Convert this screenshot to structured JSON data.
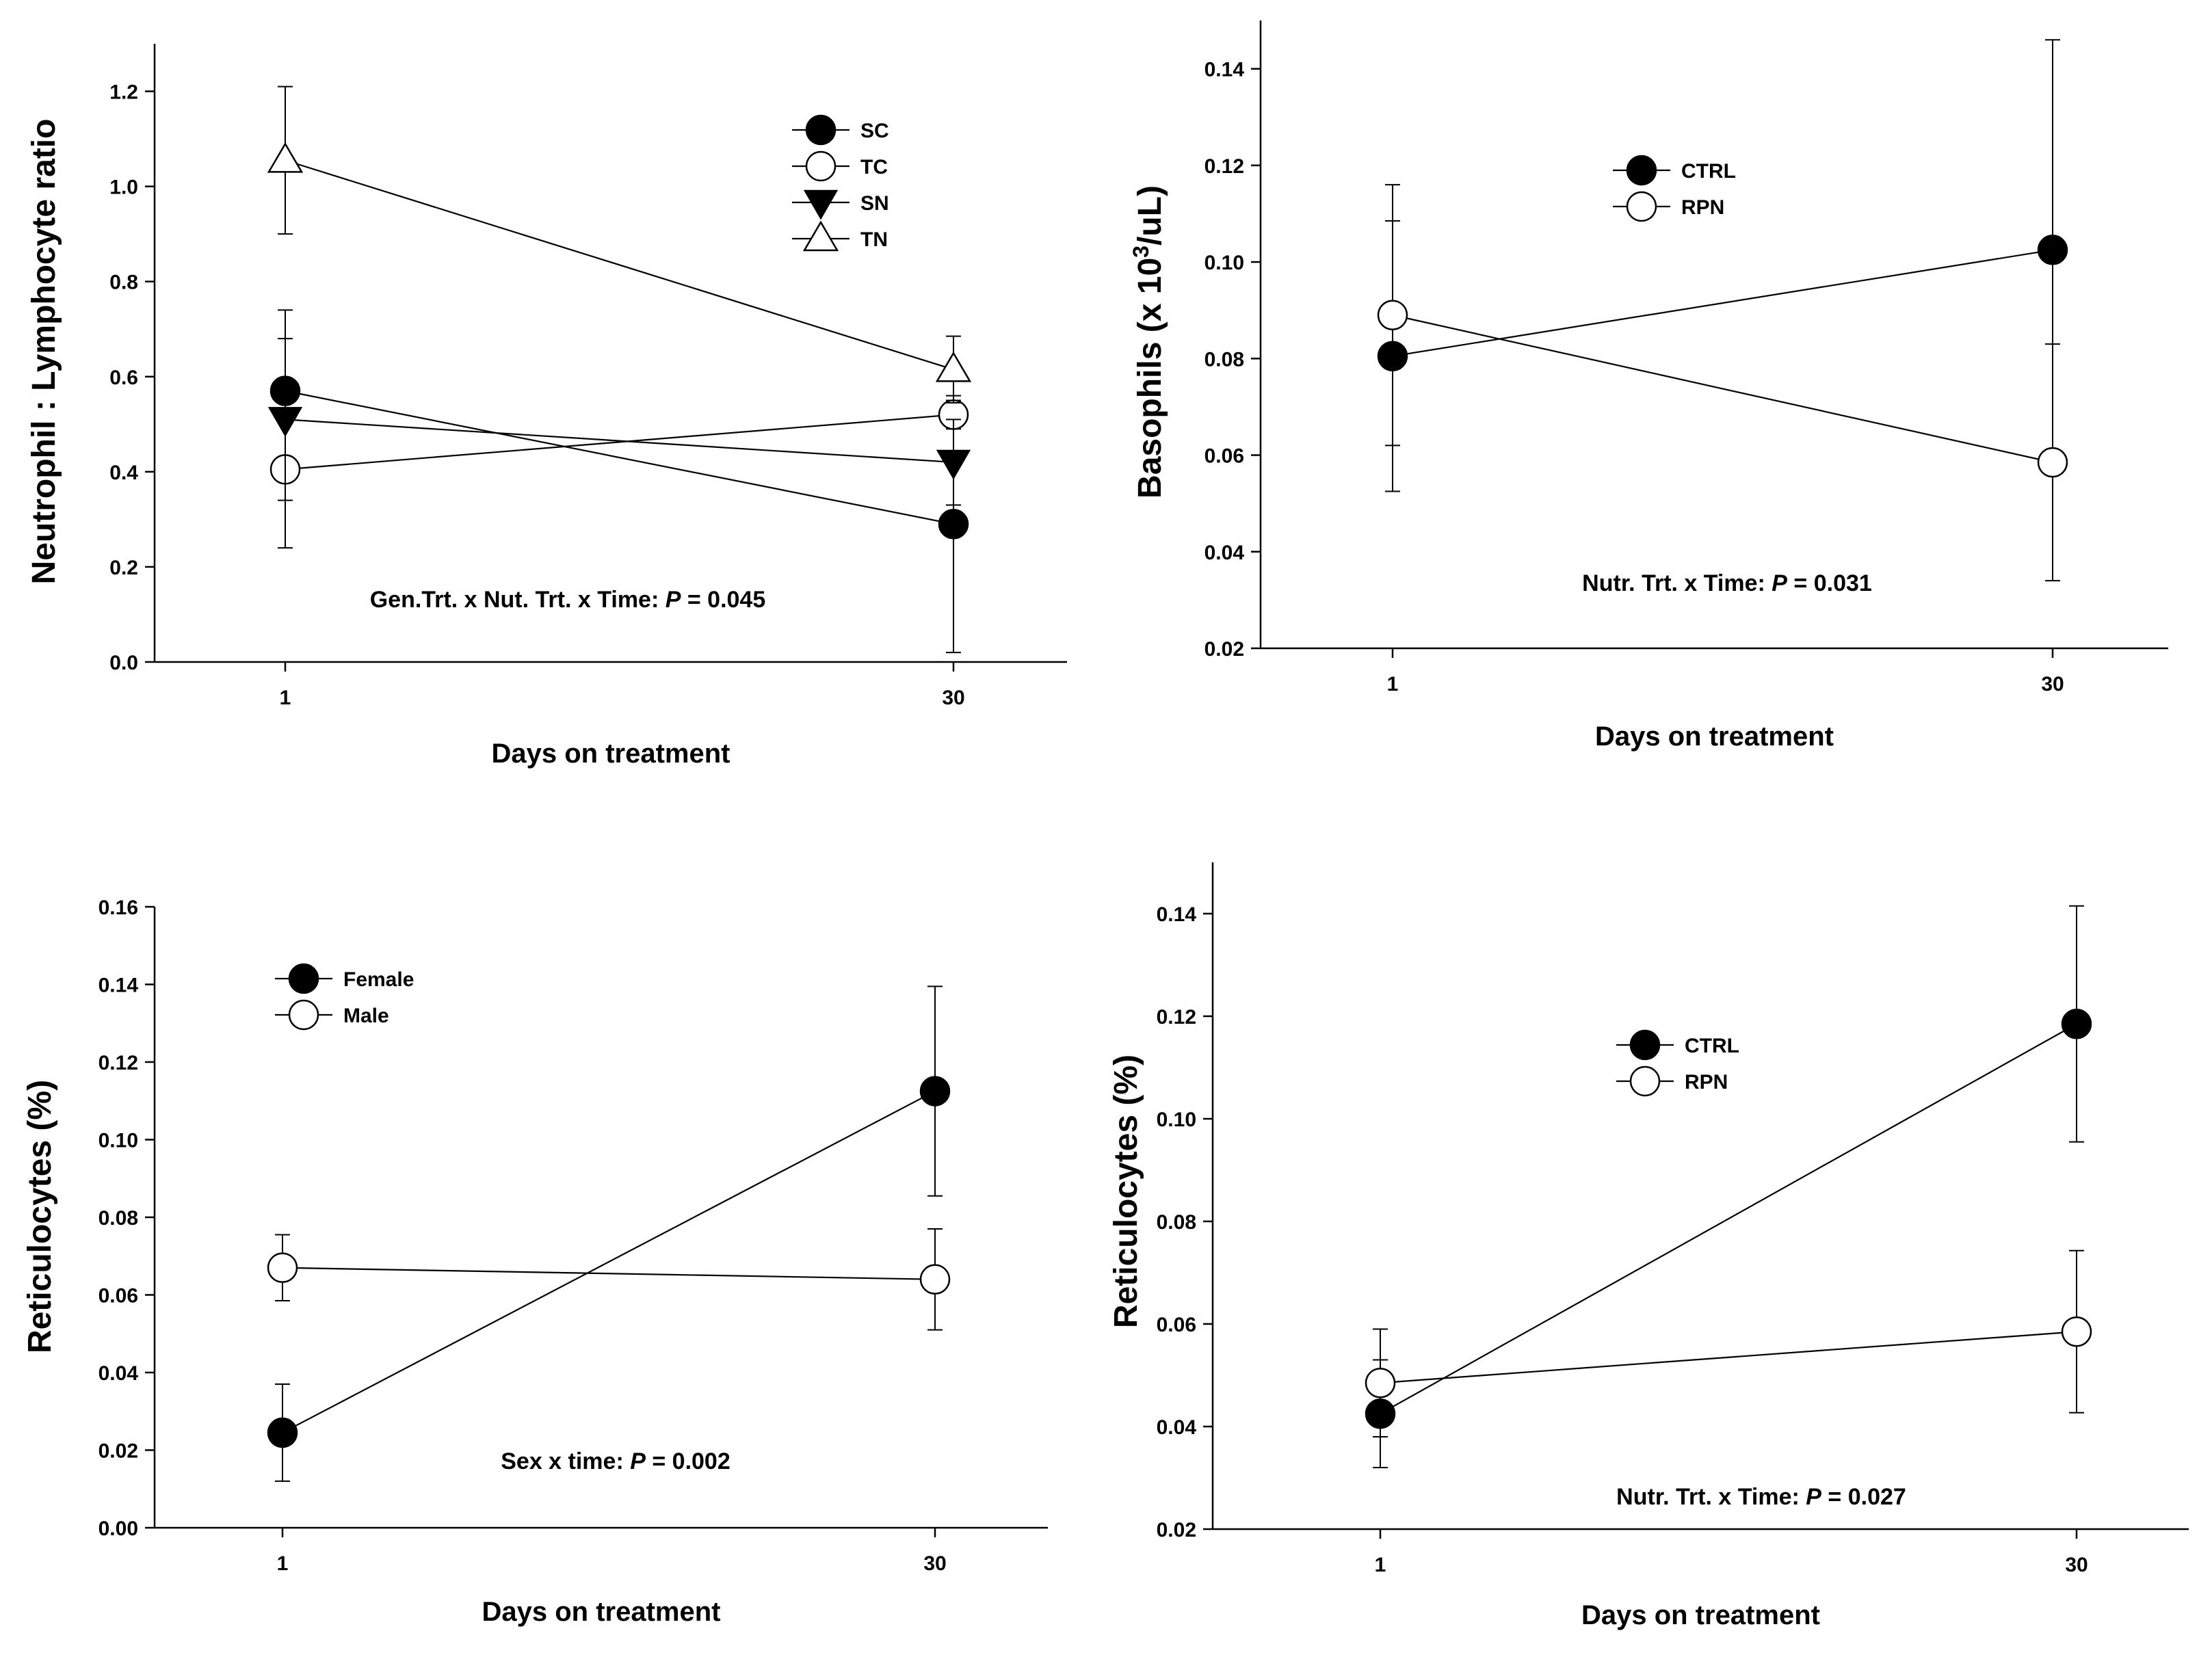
{
  "chart_data": [
    {
      "type": "line",
      "ylabel": "Neutrophil : Lymphocyte ratio",
      "xlabel": "Days on treatment",
      "x": [
        1,
        30
      ],
      "x_tick_labels": [
        "1",
        "30"
      ],
      "ylim": [
        0.0,
        1.3
      ],
      "y_ticks": [
        0.0,
        0.2,
        0.4,
        0.6,
        0.8,
        1.0,
        1.2
      ],
      "y_tick_labels": [
        "0.0",
        "0.2",
        "0.4",
        "0.6",
        "0.8",
        "1.0",
        "1.2"
      ],
      "grid": false,
      "legend_position": "top-right",
      "annotation": {
        "prefix": "Gen.Trt. x Nut. Trt. x Time: ",
        "p": "P",
        "suffix": " = 0.045"
      },
      "series": [
        {
          "name": "SC",
          "marker": "filled-circle",
          "values": [
            0.57,
            0.29
          ],
          "errors": [
            0.17,
            0.27
          ]
        },
        {
          "name": "TC",
          "marker": "open-circle",
          "values": [
            0.405,
            0.52
          ],
          "errors": [
            0.165,
            0.03
          ]
        },
        {
          "name": "SN",
          "marker": "filled-triangle-down",
          "values": [
            0.51,
            0.42
          ],
          "errors": [
            0.17,
            0.09
          ]
        },
        {
          "name": "TN",
          "marker": "open-triangle-up",
          "values": [
            1.055,
            0.615
          ],
          "errors": [
            0.155,
            0.07
          ]
        }
      ]
    },
    {
      "type": "line",
      "ylabel_pre": "Basophils (x 10",
      "ylabel_sup": "3",
      "ylabel_post": "/uL)",
      "xlabel": "Days on treatment",
      "x": [
        1,
        30
      ],
      "x_tick_labels": [
        "1",
        "30"
      ],
      "ylim": [
        0.02,
        0.15
      ],
      "y_ticks": [
        0.02,
        0.04,
        0.06,
        0.08,
        0.1,
        0.12,
        0.14
      ],
      "y_tick_labels": [
        "0.02",
        "0.04",
        "0.06",
        "0.08",
        "0.10",
        "0.12",
        "0.14"
      ],
      "grid": false,
      "legend_position": "top-center",
      "annotation": {
        "prefix": "Nutr. Trt. x Time: ",
        "p": "P",
        "suffix": " = 0.031"
      },
      "series": [
        {
          "name": "CTRL",
          "marker": "filled-circle",
          "values": [
            0.0805,
            0.1025
          ],
          "errors": [
            0.028,
            0.0435
          ]
        },
        {
          "name": "RPN",
          "marker": "open-circle",
          "values": [
            0.089,
            0.0585
          ],
          "errors": [
            0.027,
            0.0245
          ]
        }
      ]
    },
    {
      "type": "line",
      "ylabel": "Reticulocytes (%)",
      "xlabel": "Days on treatment",
      "x": [
        1,
        30
      ],
      "x_tick_labels": [
        "1",
        "30"
      ],
      "ylim": [
        0.0,
        0.16
      ],
      "y_ticks": [
        0.0,
        0.02,
        0.04,
        0.06,
        0.08,
        0.1,
        0.12,
        0.14,
        0.16
      ],
      "y_tick_labels": [
        "0.00",
        "0.02",
        "0.04",
        "0.06",
        "0.08",
        "0.10",
        "0.12",
        "0.14",
        "0.16"
      ],
      "grid": false,
      "legend_position": "top-left",
      "annotation": {
        "prefix": "Sex x time: ",
        "p": "P",
        "suffix": " = 0.002"
      },
      "series": [
        {
          "name": "Female",
          "marker": "filled-circle",
          "values": [
            0.0245,
            0.1125
          ],
          "errors": [
            0.0125,
            0.027
          ]
        },
        {
          "name": "Male",
          "marker": "open-circle",
          "values": [
            0.067,
            0.064
          ],
          "errors": [
            0.0085,
            0.013
          ]
        }
      ]
    },
    {
      "type": "line",
      "ylabel": "Reticulocytes (%)",
      "xlabel": "Days on treatment",
      "x": [
        1,
        30
      ],
      "x_tick_labels": [
        "1",
        "30"
      ],
      "ylim": [
        0.02,
        0.15
      ],
      "y_ticks": [
        0.02,
        0.04,
        0.06,
        0.08,
        0.1,
        0.12,
        0.14
      ],
      "y_tick_labels": [
        "0.02",
        "0.04",
        "0.06",
        "0.08",
        "0.10",
        "0.12",
        "0.14"
      ],
      "grid": false,
      "legend_position": "top-center",
      "annotation": {
        "prefix": "Nutr. Trt. x Time: ",
        "p": "P",
        "suffix": " = 0.027"
      },
      "series": [
        {
          "name": "CTRL",
          "marker": "filled-circle",
          "values": [
            0.0425,
            0.1185
          ],
          "errors": [
            0.0105,
            0.023
          ]
        },
        {
          "name": "RPN",
          "marker": "open-circle",
          "values": [
            0.0485,
            0.0585
          ],
          "errors": [
            0.0105,
            0.0158
          ]
        }
      ]
    }
  ]
}
